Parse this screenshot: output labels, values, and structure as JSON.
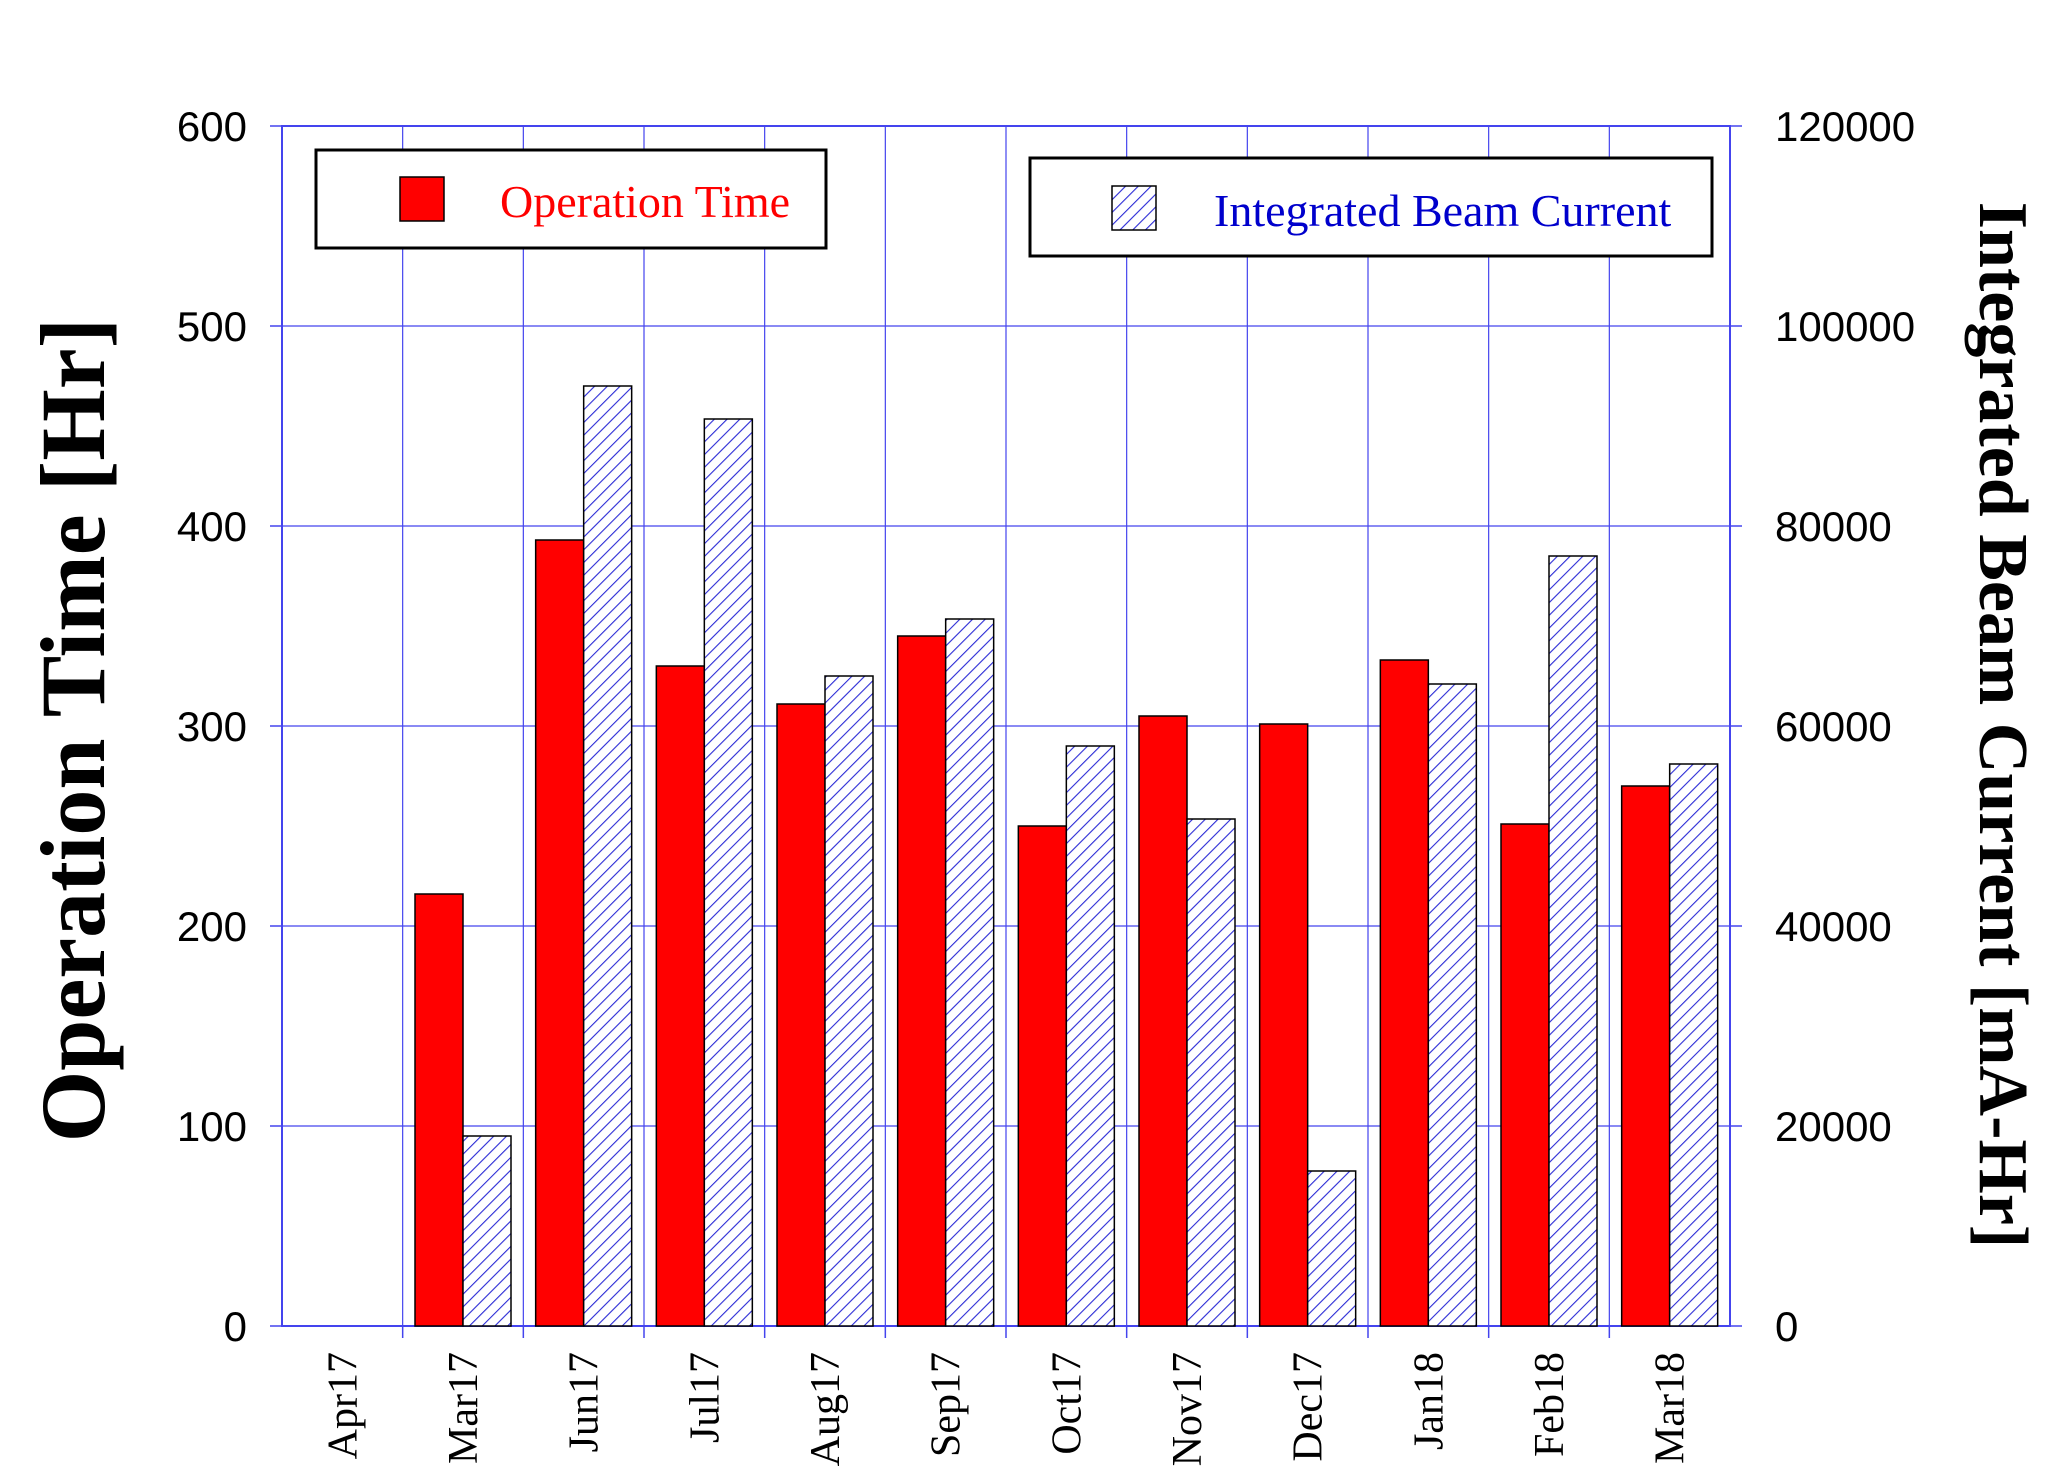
{
  "chart_data": {
    "type": "bar",
    "categories": [
      "Apr17",
      "Mar17",
      "Jun17",
      "Jul17",
      "Aug17",
      "Sep17",
      "Oct17",
      "Nov17",
      "Dec17",
      "Jan18",
      "Feb18",
      "Mar18"
    ],
    "series": [
      {
        "name": "Operation Time",
        "axis": "left",
        "color": "#ff0000",
        "values": [
          0,
          216,
          393,
          330,
          311,
          345,
          250,
          305,
          301,
          333,
          251,
          270
        ]
      },
      {
        "name": "Integrated Beam Current",
        "axis": "right",
        "color": "#0000cc",
        "pattern": "diagonal-hatch",
        "values": [
          0,
          19000,
          94000,
          90700,
          65000,
          70700,
          58000,
          50700,
          15500,
          64200,
          77000,
          56200
        ]
      }
    ],
    "ylabel": "Operation Time [Hr]",
    "y2label": "Integrated Beam Current [mA-Hr]",
    "ylim": [
      0,
      600
    ],
    "y2lim": [
      0,
      120000
    ],
    "yticks": [
      "0",
      "100",
      "200",
      "300",
      "400",
      "500",
      "600"
    ],
    "y2ticks": [
      "0",
      "20000",
      "40000",
      "60000",
      "80000",
      "100000",
      "120000"
    ],
    "grid": true,
    "grid_color": "#4444ee",
    "legend": [
      {
        "label": "Operation Time",
        "placement": "top-left",
        "text_color": "#ff0000"
      },
      {
        "label": "Integrated Beam Current",
        "placement": "top-right",
        "text_color": "#0000cc"
      }
    ]
  }
}
